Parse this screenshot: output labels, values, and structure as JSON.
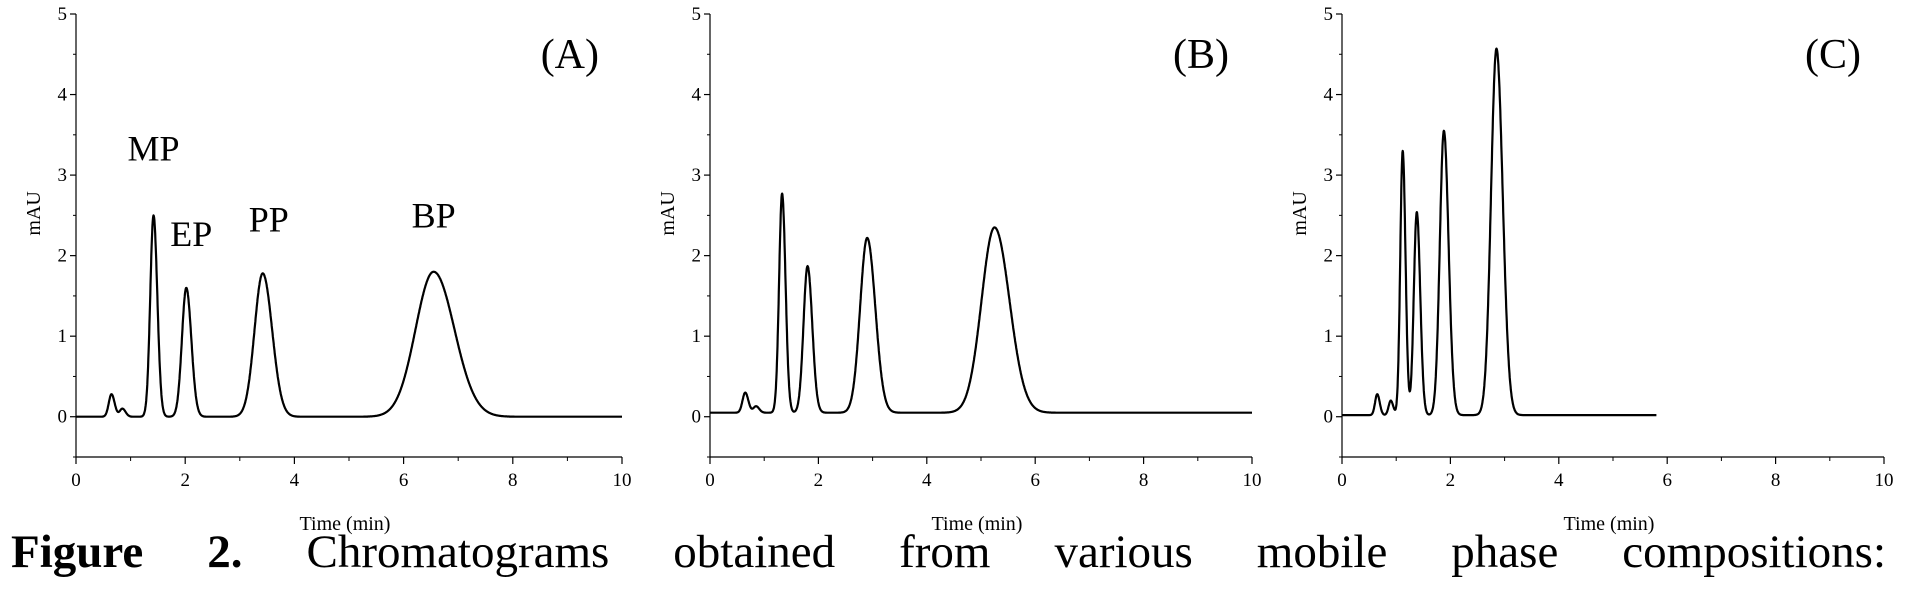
{
  "caption": {
    "label": "Figure 2.",
    "text": "Chromatograms obtained from various mobile phase compositions:"
  },
  "chart_data": [
    {
      "type": "line",
      "panel_label": "(A)",
      "xlabel": "Time (min)",
      "ylabel": "mAU",
      "xlim": [
        0,
        10
      ],
      "ylim": [
        -0.5,
        5
      ],
      "xticks": [
        0,
        2,
        4,
        6,
        8,
        10
      ],
      "yticks": [
        0,
        1,
        2,
        3,
        4,
        5
      ],
      "baseline": 0.0,
      "peaks": [
        {
          "name": "",
          "rt": 0.65,
          "height": 0.28,
          "width": 0.05
        },
        {
          "name": "",
          "rt": 0.85,
          "height": 0.1,
          "width": 0.05
        },
        {
          "name": "MP",
          "rt": 1.42,
          "height": 2.5,
          "width": 0.06
        },
        {
          "name": "EP",
          "rt": 2.02,
          "height": 1.6,
          "width": 0.08
        },
        {
          "name": "PP",
          "rt": 3.42,
          "height": 1.78,
          "width": 0.15
        },
        {
          "name": "BP",
          "rt": 6.55,
          "height": 1.8,
          "width": 0.33
        }
      ],
      "series": [
        {
          "x_end": 10
        }
      ]
    },
    {
      "type": "line",
      "panel_label": "(B)",
      "xlabel": "Time (min)",
      "ylabel": "mAU",
      "xlim": [
        0,
        10
      ],
      "ylim": [
        -0.5,
        5
      ],
      "xticks": [
        0,
        2,
        4,
        6,
        8,
        10
      ],
      "yticks": [
        0,
        1,
        2,
        3,
        4,
        5
      ],
      "baseline": 0.05,
      "peaks": [
        {
          "name": "",
          "rt": 0.65,
          "height": 0.25,
          "width": 0.05
        },
        {
          "name": "",
          "rt": 0.85,
          "height": 0.08,
          "width": 0.05
        },
        {
          "name": "",
          "rt": 1.33,
          "height": 2.72,
          "width": 0.055
        },
        {
          "name": "",
          "rt": 1.8,
          "height": 1.82,
          "width": 0.075
        },
        {
          "name": "",
          "rt": 2.9,
          "height": 2.17,
          "width": 0.13
        },
        {
          "name": "",
          "rt": 5.25,
          "height": 2.3,
          "width": 0.24
        }
      ],
      "series": [
        {
          "x_end": 10
        }
      ]
    },
    {
      "type": "line",
      "panel_label": "(C)",
      "xlabel": "Time (min)",
      "ylabel": "mAU",
      "xlim": [
        0,
        10
      ],
      "ylim": [
        -0.5,
        5
      ],
      "xticks": [
        0,
        2,
        4,
        6,
        8,
        10
      ],
      "yticks": [
        0,
        1,
        2,
        3,
        4,
        5
      ],
      "baseline": 0.02,
      "peaks": [
        {
          "name": "",
          "rt": 0.65,
          "height": 0.26,
          "width": 0.04
        },
        {
          "name": "",
          "rt": 0.9,
          "height": 0.18,
          "width": 0.04
        },
        {
          "name": "",
          "rt": 1.12,
          "height": 3.28,
          "width": 0.045
        },
        {
          "name": "",
          "rt": 1.38,
          "height": 2.52,
          "width": 0.055
        },
        {
          "name": "",
          "rt": 1.88,
          "height": 3.53,
          "width": 0.075
        },
        {
          "name": "",
          "rt": 2.85,
          "height": 4.55,
          "width": 0.1
        }
      ],
      "series": [
        {
          "x_end": 5.8
        }
      ]
    }
  ]
}
